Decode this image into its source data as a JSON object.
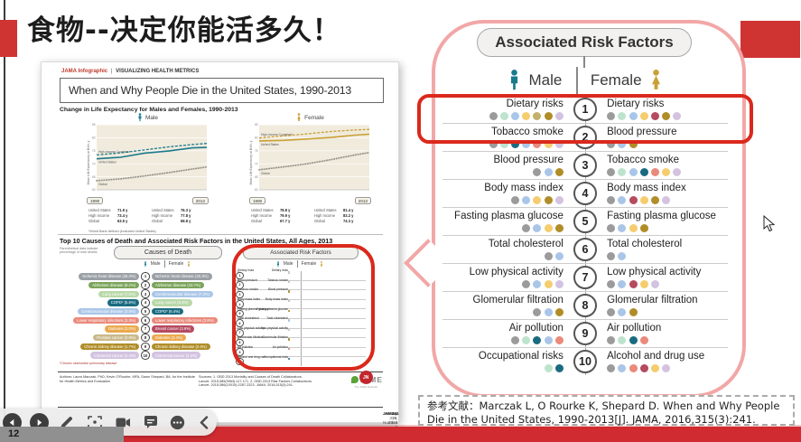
{
  "slide": {
    "title": "食物--决定你能活多久！",
    "page_number": "12"
  },
  "colors": {
    "accent_red": "#cf3433",
    "strip_red": "#cf2b31",
    "callout_pink": "#f2a7a7",
    "highlight_red": "#da291c",
    "male_teal": "#1a7a8c",
    "female_gold": "#c9a035"
  },
  "infographic": {
    "kicker_brand": "JAMA Infographic",
    "kicker_divider": "|",
    "kicker_title": "VISUALIZING HEALTH METRICS",
    "title": "When and Why People Die in the United States, 1990-2013",
    "life_expectancy": {
      "heading": "Change in Life Expectancy for Males and Females, 1990-2013",
      "male_label": "Male",
      "female_label": "Female",
      "x_start": "1990",
      "x_end": "2013",
      "stats": {
        "male_1990": [
          {
            "name": "United States",
            "value": "71.9 y"
          },
          {
            "name": "High Income",
            "value": "73.4 y"
          },
          {
            "name": "Global",
            "value": "63.5 y"
          }
        ],
        "male_2013": [
          {
            "name": "United States",
            "value": "76.3 y"
          },
          {
            "name": "High Income",
            "value": "77.8 y"
          },
          {
            "name": "Global",
            "value": "68.8 y"
          }
        ],
        "female_1990": [
          {
            "name": "United States",
            "value": "78.8 y"
          },
          {
            "name": "High Income",
            "value": "79.9 y"
          },
          {
            "name": "Global",
            "value": "67.7 y"
          }
        ],
        "female_2013": [
          {
            "name": "United States",
            "value": "81.4 y"
          },
          {
            "name": "High Income",
            "value": "83.2 y"
          },
          {
            "name": "Global",
            "value": "74.3 y"
          }
        ]
      },
      "footnote": "*World Bank defined (excludes United States)"
    },
    "top10": {
      "heading": "Top 10 Causes of Death and Associated Risk Factors in the United States, All Ages, 2013",
      "subnote": "Parenthetical data indicate percentage of total deaths",
      "causes_header": "Causes of Death",
      "risks_header": "Associated Risk Factors",
      "male_label": "Male",
      "female_label": "Female",
      "causes": [
        {
          "num": "1",
          "male": "Ischemic heart disease (26.3%)",
          "male_color": "#9aa0a6",
          "female": "Ischemic heart disease (30.3%)",
          "female_color": "#9aa0a6"
        },
        {
          "num": "2",
          "male": "Alzheimer disease (8.2%)",
          "male_color": "#7aa45a",
          "female": "Alzheimer disease (10.7%)",
          "female_color": "#7aa45a"
        },
        {
          "num": "3",
          "male": "Lung cancer (7.0%)",
          "male_color": "#b9d8a8",
          "female": "Cerebrovascular disease (7.3%)",
          "female_color": "#a9c6e8"
        },
        {
          "num": "4",
          "male": "COPD* (5.8%)",
          "male_color": "#1a6b80",
          "female": "Lung cancer (5.3%)",
          "female_color": "#b9d8a8"
        },
        {
          "num": "5",
          "male": "Cerebrovascular disease (3.9%)",
          "male_color": "#a9c6e8",
          "female": "COPD* (6.4%)",
          "female_color": "#1a6b80"
        },
        {
          "num": "6",
          "male": "Lower respiratory infections (3.3%)",
          "male_color": "#e98a7b",
          "female": "Lower respiratory infections (3.8%)",
          "female_color": "#e98a7b"
        },
        {
          "num": "7",
          "male": "Diabetes (3.0%)",
          "male_color": "#eaa94e",
          "female": "Breast cancer (3.9%)",
          "female_color": "#b54a60"
        },
        {
          "num": "8",
          "male": "Prostate cancer (2.9%)",
          "male_color": "#c9b98a",
          "female": "Diabetes (3.4%)",
          "female_color": "#eaa94e"
        },
        {
          "num": "9",
          "male": "Chronic kidney disease (1.7%)",
          "male_color": "#b08d28",
          "female": "Chronic kidney disease (2.4%)",
          "female_color": "#b08d28"
        },
        {
          "num": "10",
          "male": "Colorectal cancer (2.4%)",
          "male_color": "#d3c3e0",
          "female": "Colorectal cancer (2.3%)",
          "female_color": "#d3c3e0"
        }
      ],
      "copd_footnote": "*Chronic obstructive pulmonary disease"
    },
    "footer": {
      "authors": "Authors: Laura Marczak, PhD, Kevin O'Rourke, MFA, Dawn Shepard, BA, for the Institute for Health Metrics and Evaluation",
      "sources": "Sources: 1. GBD 2013 Mortality and Causes of Death Collaborators. Lancet. 2015;385(9963):117-171. 2. GBD 2013 Risk Factors Collaborators. Lancet. 2015;386(10010):2287-2323. JAMA. 2016;315(3):241.",
      "ihme_label": "IHME",
      "jama_logo": "JN",
      "jama_network_label": "The JAMA Network",
      "journal": "JAMA",
      "date": "January 19, 2016",
      "volume": "Volume 315, Number 3",
      "page": "241"
    }
  },
  "callout": {
    "header": "Associated Risk Factors",
    "male_label": "Male",
    "female_label": "Female",
    "highlighted_row": "1",
    "rows": [
      {
        "num": "1",
        "male": "Dietary risks",
        "male_dots": [
          "#9b9b9b",
          "#bde3cd",
          "#a9c6e8",
          "#f5cd6e",
          "#c3b06b",
          "#b08d28",
          "#d3c3e0"
        ],
        "female": "Dietary risks",
        "female_dots": [
          "#9b9b9b",
          "#bde3cd",
          "#a9c6e8",
          "#f5cd6e",
          "#b54a60",
          "#b08d28",
          "#d3c3e0"
        ]
      },
      {
        "num": "2",
        "male": "Tobacco smoke",
        "male_dots": [
          "#9b9b9b",
          "#bde3cd",
          "#1a6b80",
          "#a9c6e8",
          "#e98a7b",
          "#f5cd6e",
          "#d3c3e0"
        ],
        "female": "Blood pressure",
        "female_dots": [
          "#9b9b9b",
          "#a9c6e8",
          "#b08d28"
        ]
      },
      {
        "num": "3",
        "male": "Blood pressure",
        "male_dots": [
          "#9b9b9b",
          "#a9c6e8",
          "#b08d28"
        ],
        "female": "Tobacco smoke",
        "female_dots": [
          "#9b9b9b",
          "#bde3cd",
          "#a9c6e8",
          "#1a6b80",
          "#e98a7b",
          "#f5cd6e",
          "#d3c3e0"
        ]
      },
      {
        "num": "4",
        "male": "Body mass index",
        "male_dots": [
          "#9b9b9b",
          "#a9c6e8",
          "#f5cd6e",
          "#b08d28",
          "#d3c3e0"
        ],
        "female": "Body mass index",
        "female_dots": [
          "#9b9b9b",
          "#a9c6e8",
          "#b54a60",
          "#f5cd6e",
          "#b08d28",
          "#d3c3e0"
        ]
      },
      {
        "num": "5",
        "male": "Fasting plasma glucose",
        "male_dots": [
          "#9b9b9b",
          "#a9c6e8",
          "#f5cd6e",
          "#b08d28"
        ],
        "female": "Fasting plasma glucose",
        "female_dots": [
          "#9b9b9b",
          "#a9c6e8",
          "#f5cd6e",
          "#b08d28"
        ]
      },
      {
        "num": "6",
        "male": "Total cholesterol",
        "male_dots": [
          "#9b9b9b",
          "#a9c6e8"
        ],
        "female": "Total cholesterol",
        "female_dots": [
          "#9b9b9b",
          "#a9c6e8"
        ]
      },
      {
        "num": "7",
        "male": "Low physical activity",
        "male_dots": [
          "#9b9b9b",
          "#a9c6e8",
          "#f5cd6e",
          "#d3c3e0"
        ],
        "female": "Low physical activity",
        "female_dots": [
          "#9b9b9b",
          "#a9c6e8",
          "#b54a60",
          "#f5cd6e",
          "#d3c3e0"
        ]
      },
      {
        "num": "8",
        "male": "Glomerular filtration",
        "male_dots": [
          "#9b9b9b",
          "#a9c6e8",
          "#b08d28"
        ],
        "female": "Glomerular filtration",
        "female_dots": [
          "#9b9b9b",
          "#a9c6e8",
          "#b08d28"
        ]
      },
      {
        "num": "9",
        "male": "Air pollution",
        "male_dots": [
          "#9b9b9b",
          "#bde3cd",
          "#1a6b80",
          "#a9c6e8",
          "#e98a7b"
        ],
        "female": "Air pollution",
        "female_dots": [
          "#9b9b9b",
          "#bde3cd",
          "#1a6b80",
          "#e98a7b"
        ]
      },
      {
        "num": "10",
        "male": "Occupational risks",
        "male_dots": [
          "#bde3cd",
          "#1a6b80"
        ],
        "female": "Alcohol and drug use",
        "female_dots": [
          "#9b9b9b",
          "#a9c6e8",
          "#e98a7b",
          "#b54a60",
          "#f5cd6e",
          "#d3c3e0"
        ]
      }
    ]
  },
  "citation": {
    "label": "参考文献：",
    "text": "Marczak L, O Rourke K, Shepard D. When and Why People Die in the United States, 1990-2013[J]. JAMA, 2016,315(3):241."
  },
  "player": {
    "buttons": [
      "back",
      "play",
      "annotate",
      "screenshot",
      "camera",
      "comment",
      "more",
      "collapse"
    ]
  },
  "chart_data": [
    {
      "type": "line",
      "title": "Change in Life Expectancy, Males, 1990-2013",
      "ylabel": "Mean Life Expectancy at Birth, y",
      "ylim": [
        60,
        85
      ],
      "x": [
        1990,
        1995,
        2000,
        2005,
        2010,
        2013
      ],
      "x_tick_labels": [
        "1990",
        "2013"
      ],
      "series": [
        {
          "name": "High-Income Countries*",
          "style": "dashed",
          "color": "#1b7a8c",
          "values": [
            73.4,
            74.2,
            75.3,
            76.5,
            77.4,
            77.8
          ]
        },
        {
          "name": "United States",
          "style": "solid",
          "color": "#1b7a8c",
          "values": [
            71.9,
            72.5,
            74.1,
            74.9,
            76.1,
            76.3
          ]
        },
        {
          "name": "Global",
          "style": "dotted",
          "color": "#98948a",
          "values": [
            63.5,
            64.2,
            65.3,
            66.6,
            68.0,
            68.8
          ]
        }
      ]
    },
    {
      "type": "line",
      "title": "Change in Life Expectancy, Females, 1990-2013",
      "ylabel": "Mean Life Expectancy at Birth, y",
      "ylim": [
        60,
        85
      ],
      "x": [
        1990,
        1995,
        2000,
        2005,
        2010,
        2013
      ],
      "x_tick_labels": [
        "1990",
        "2013"
      ],
      "series": [
        {
          "name": "High-Income Countries*",
          "style": "dashed",
          "color": "#c9a035",
          "values": [
            79.9,
            80.7,
            81.5,
            82.4,
            83.0,
            83.2
          ]
        },
        {
          "name": "United States",
          "style": "solid",
          "color": "#c9a035",
          "values": [
            78.8,
            79.0,
            79.5,
            80.1,
            81.0,
            81.4
          ]
        },
        {
          "name": "Global",
          "style": "dotted",
          "color": "#98948a",
          "values": [
            67.7,
            68.8,
            70.0,
            71.6,
            73.4,
            74.3
          ]
        }
      ]
    }
  ]
}
